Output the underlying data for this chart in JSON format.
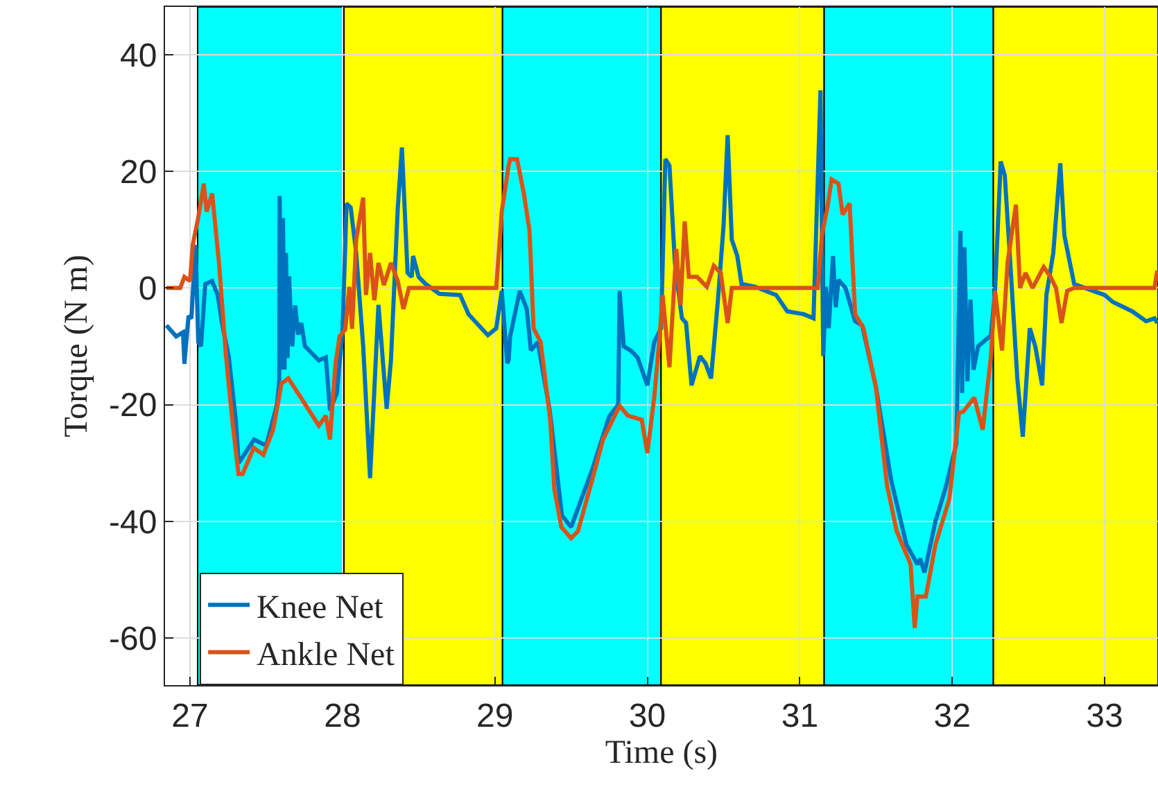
{
  "chart_data": {
    "type": "line",
    "xlabel": "Time (s)",
    "ylabel": "Torque (N m)",
    "xlim": [
      26.836,
      33.35
    ],
    "ylim": [
      -68.1,
      48.2
    ],
    "xticks": [
      27,
      28,
      29,
      30,
      31,
      32,
      33
    ],
    "yticks": [
      -60,
      -40,
      -20,
      0,
      20,
      40
    ],
    "grid": true,
    "legend": "bottom left",
    "bands": [
      {
        "axis": "x",
        "from": 27.05,
        "to": 28.01,
        "color": "#00ffff"
      },
      {
        "axis": "x",
        "from": 28.01,
        "to": 29.05,
        "color": "#ffff00"
      },
      {
        "axis": "x",
        "from": 29.05,
        "to": 30.09,
        "color": "#00ffff"
      },
      {
        "axis": "x",
        "from": 30.09,
        "to": 31.16,
        "color": "#ffff00"
      },
      {
        "axis": "x",
        "from": 31.16,
        "to": 32.27,
        "color": "#00ffff"
      },
      {
        "axis": "x",
        "from": 32.27,
        "to": 33.35,
        "color": "#ffff00"
      }
    ],
    "series": [
      {
        "name": "Knee Net",
        "color": "#0072bd",
        "x": [
          26.845,
          26.909,
          26.954,
          26.963,
          26.99,
          27.009,
          27.036,
          27.054,
          27.072,
          27.1,
          27.145,
          27.181,
          27.209,
          27.254,
          27.3,
          27.32,
          27.42,
          27.5,
          27.57,
          27.585,
          27.588,
          27.6,
          27.61,
          27.62,
          27.63,
          27.64,
          27.65,
          27.67,
          27.69,
          27.71,
          27.73,
          27.754,
          27.845,
          27.891,
          27.918,
          27.963,
          28.0,
          28.027,
          28.054,
          28.09,
          28.136,
          28.181,
          28.236,
          28.29,
          28.318,
          28.363,
          28.39,
          28.427,
          28.454,
          28.463,
          28.5,
          28.545,
          28.636,
          28.772,
          28.827,
          28.954,
          29.009,
          29.045,
          29.081,
          29.09,
          29.1,
          29.163,
          29.209,
          29.236,
          29.281,
          29.36,
          29.44,
          29.5,
          29.64,
          29.75,
          29.809,
          29.818,
          29.845,
          29.89,
          29.936,
          30.0,
          30.045,
          30.09,
          30.118,
          30.145,
          30.181,
          30.227,
          30.254,
          30.29,
          30.345,
          30.381,
          30.418,
          30.463,
          30.5,
          30.527,
          30.554,
          30.59,
          30.618,
          30.709,
          30.845,
          30.918,
          31.027,
          31.09,
          31.136,
          31.154,
          31.172,
          31.19,
          31.218,
          31.236,
          31.254,
          31.3,
          31.363,
          31.409,
          31.5,
          31.6,
          31.7,
          31.772,
          31.79,
          31.818,
          31.89,
          31.954,
          32.027,
          32.054,
          32.065,
          32.08,
          32.1,
          32.12,
          32.14,
          32.17,
          32.254,
          32.281,
          32.318,
          32.345,
          32.381,
          32.427,
          32.463,
          32.509,
          32.545,
          32.59,
          32.618,
          32.663,
          32.709,
          32.736,
          32.772,
          32.8,
          32.872,
          33.0,
          33.054,
          33.181,
          33.272,
          33.327,
          33.345
        ],
        "values": [
          -6.4,
          -8.3,
          -7.6,
          -13,
          -4.8,
          -5.2,
          7.4,
          -9.3,
          -10,
          0.7,
          1.2,
          -1.2,
          -6,
          -11.7,
          -22.6,
          -30,
          -26,
          -27,
          -20,
          -16,
          15.8,
          -14,
          12,
          -14,
          6,
          -12,
          2,
          -10,
          -3,
          -8,
          -6,
          -10,
          -12.4,
          -11.9,
          -21,
          -18,
          -7.6,
          14.5,
          13.8,
          6,
          -10,
          -32.6,
          -2.9,
          -20.7,
          -12.4,
          13.8,
          24.1,
          2.6,
          1.9,
          5.5,
          1.9,
          0.7,
          -1,
          -1.2,
          -4.5,
          -8.1,
          -6.9,
          -0.5,
          -12.9,
          -12.4,
          -8.3,
          -0.5,
          -3.6,
          -10.7,
          -9.3,
          -21,
          -39,
          -41,
          -31,
          -22,
          -20,
          -0.5,
          -10,
          -10.7,
          -11.9,
          -16.7,
          -9.3,
          -6.9,
          22.1,
          21,
          4.3,
          -5.2,
          -6,
          -16.7,
          -11.7,
          -12.9,
          -15.5,
          -2.1,
          10.7,
          26.2,
          8.3,
          5.5,
          0.7,
          0.2,
          -1.2,
          -4,
          -4.5,
          -5.2,
          33.9,
          -11.7,
          0.2,
          -6.9,
          5.5,
          -3.3,
          1.4,
          0,
          -5.7,
          -6.4,
          -17,
          -33,
          -44,
          -47.4,
          -46.4,
          -48.8,
          -40,
          -34.5,
          -26.7,
          9.8,
          -18,
          7,
          -16,
          -2,
          -14,
          -10,
          -8.1,
          -0.5,
          21.7,
          19.3,
          4.3,
          -15.5,
          -25.5,
          -6.9,
          -10,
          -16.7,
          -1.2,
          6,
          21.4,
          9,
          4.3,
          0.7,
          0,
          -1.2,
          -2.4,
          -4,
          -5.7,
          -5.2,
          -6
        ]
      },
      {
        "name": "Ankle Net",
        "color": "#d95319",
        "x": [
          26.845,
          26.936,
          26.963,
          27.0,
          27.018,
          27.054,
          27.09,
          27.109,
          27.145,
          27.19,
          27.236,
          27.281,
          27.318,
          27.345,
          27.418,
          27.481,
          27.545,
          27.6,
          27.645,
          27.727,
          27.845,
          27.891,
          27.918,
          27.954,
          27.981,
          28.018,
          28.045,
          28.063,
          28.09,
          28.136,
          28.154,
          28.181,
          28.209,
          28.236,
          28.272,
          28.318,
          28.363,
          28.4,
          28.436,
          29.009,
          29.045,
          29.09,
          29.1,
          29.145,
          29.19,
          29.227,
          29.254,
          29.3,
          29.363,
          29.39,
          29.436,
          29.5,
          29.545,
          29.636,
          29.709,
          29.818,
          29.872,
          29.963,
          30.0,
          30.045,
          30.081,
          30.1,
          30.145,
          30.19,
          30.218,
          30.245,
          30.272,
          30.327,
          30.39,
          30.436,
          30.481,
          30.527,
          30.554,
          31.118,
          31.145,
          31.181,
          31.209,
          31.254,
          31.281,
          31.327,
          31.363,
          31.418,
          31.5,
          31.572,
          31.636,
          31.727,
          31.754,
          31.772,
          31.827,
          31.89,
          31.981,
          32.045,
          32.072,
          32.145,
          32.2,
          32.254,
          32.281,
          32.327,
          32.363,
          32.418,
          32.445,
          32.481,
          32.527,
          32.6,
          32.645,
          32.681,
          32.717,
          32.754,
          32.8,
          33.327,
          33.345
        ],
        "values": [
          0,
          0,
          1.9,
          1.2,
          7.4,
          12.1,
          17.9,
          13.1,
          16.2,
          4.3,
          -11.7,
          -23.6,
          -31.9,
          -31.9,
          -27.4,
          -28.6,
          -24.3,
          -16.4,
          -15.5,
          -18.8,
          -23.6,
          -21.9,
          -26,
          -13.1,
          -8.3,
          -7.1,
          0.2,
          -7,
          8.3,
          15.5,
          -1.2,
          6,
          -2.1,
          4.3,
          0.5,
          4.3,
          1.2,
          -3.6,
          0,
          0,
          13.1,
          21,
          22.1,
          22.1,
          16.2,
          9.8,
          -6.9,
          -9.3,
          -22.6,
          -34.5,
          -41,
          -42.9,
          -41.7,
          -33.1,
          -26,
          -20.2,
          -21.9,
          -22.6,
          -28.3,
          -18.8,
          -8.3,
          -1.2,
          -13.6,
          6.7,
          -2.9,
          11.4,
          1.9,
          1.9,
          0.2,
          3.8,
          2.6,
          -6,
          0,
          0,
          9,
          13.8,
          18.6,
          17.9,
          12.6,
          14.5,
          -4.5,
          -6.9,
          -17.1,
          -33.8,
          -41.7,
          -47.4,
          -58.3,
          -52.9,
          -52.9,
          -44,
          -36.2,
          -21.4,
          -21.2,
          -18.8,
          -24.3,
          -11.7,
          -0.5,
          -10.7,
          4.3,
          14.3,
          0,
          2.6,
          0,
          3.6,
          1.9,
          0,
          -6,
          -0.5,
          0,
          0,
          3
        ]
      }
    ]
  }
}
